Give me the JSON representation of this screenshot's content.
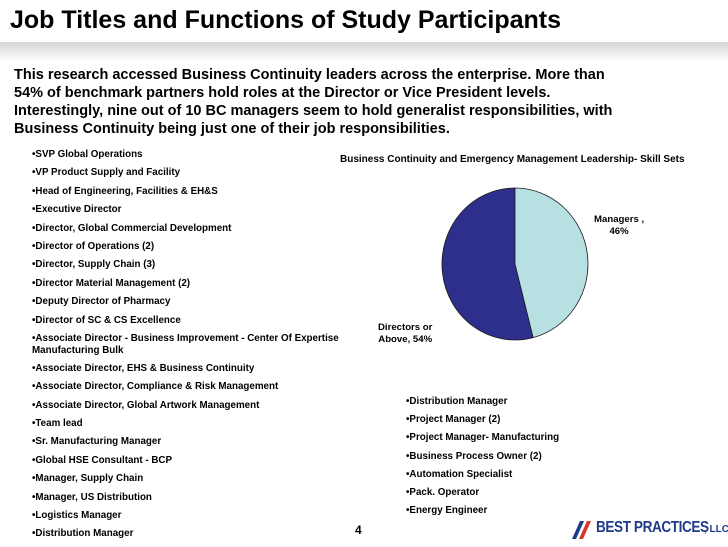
{
  "title": "Job Titles and Functions of Study Participants",
  "intro": {
    "line1": "This research accessed Business Continuity leaders across the enterprise. More than",
    "line2": "54% of benchmark partners hold roles at the Director or Vice President levels.",
    "line3": "Interestingly, nine out of 10 BC managers seem to hold generalist responsibilities, with",
    "line4": "Business Continuity being just one of their job responsibilities."
  },
  "left_list": [
    "•SVP Global Operations",
    "•VP Product Supply and Facility",
    "•Head of Engineering, Facilities & EH&S",
    "•Executive Director",
    "•Director, Global Commercial Development",
    "•Director of Operations (2)",
    "•Director, Supply Chain (3)",
    "•Director Material Management (2)",
    "•Deputy Director of Pharmacy",
    "•Director of SC & CS Excellence",
    "•Associate Director - Business Improvement - Center Of Expertise Manufacturing Bulk",
    "•Associate Director, EHS & Business Continuity",
    "•Associate Director, Compliance & Risk Management",
    "•Associate Director, Global Artwork Management",
    "•Team lead",
    "•Sr. Manufacturing Manager",
    "•Global HSE Consultant - BCP",
    "•Manager, Supply Chain",
    "•Manager, US Distribution",
    "•Logistics Manager",
    "•Distribution Manager"
  ],
  "right_list": [
    "•Distribution Manager",
    "•Project Manager (2)",
    "•Project Manager- Manufacturing",
    "•Business Process Owner (2)",
    "•Automation Specialist",
    "•Pack. Operator",
    "•Energy Engineer"
  ],
  "chart_data": {
    "type": "pie",
    "title": "Business Continuity and Emergency Management Leadership- Skill Sets",
    "slices": [
      {
        "label_line1": "Managers ,",
        "label_line2": "46%",
        "value": 46,
        "color": "#b7e0e3"
      },
      {
        "label_line1": "Directors or",
        "label_line2": "Above, 54%",
        "value": 54,
        "color": "#2e2e8c"
      }
    ]
  },
  "page_number": "4",
  "logo": {
    "text": "BEST PRACTICES",
    "suffix": ", LLC",
    "brand_color": "#1f3a8a",
    "accent_color": "#d9342b"
  }
}
